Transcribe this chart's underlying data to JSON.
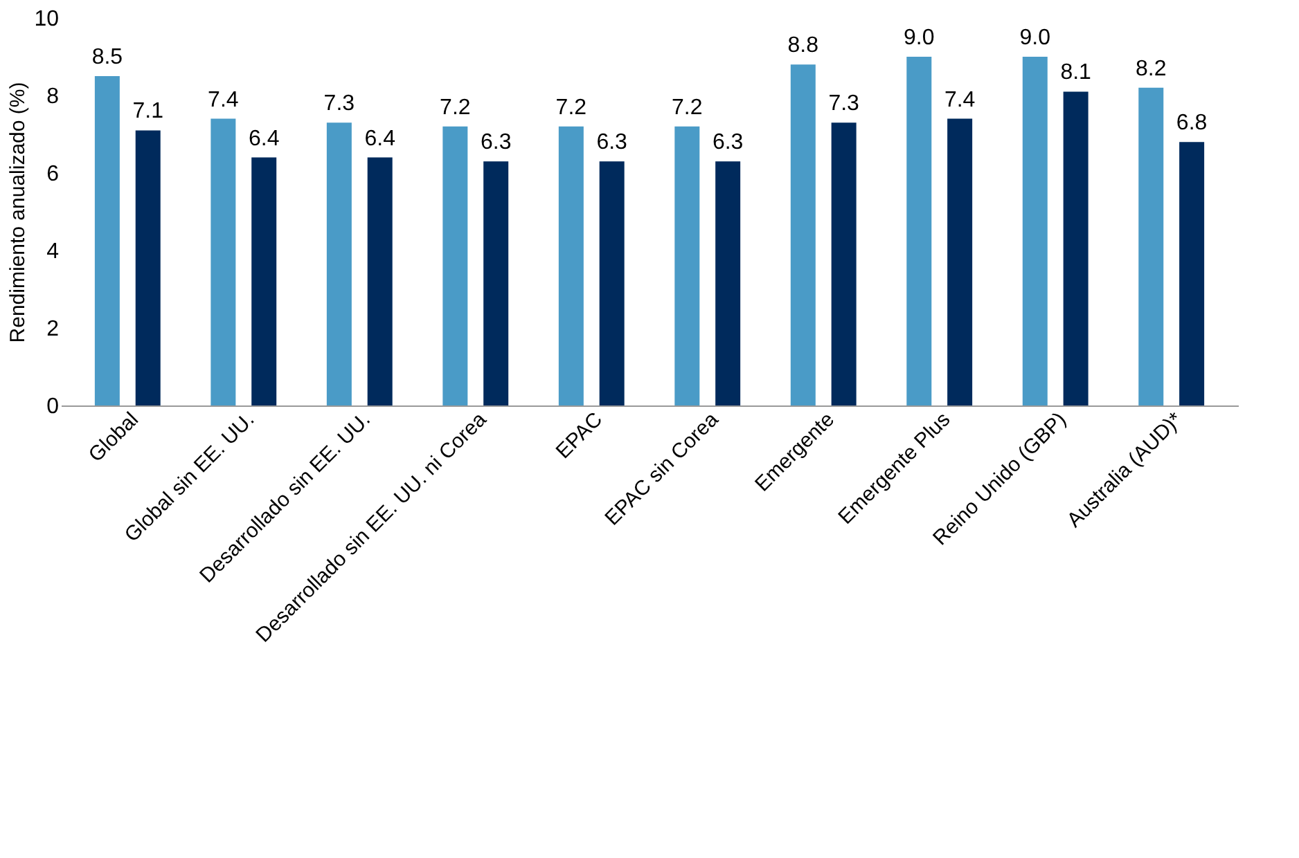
{
  "chart_data": {
    "type": "bar",
    "ylabel": "Rendimiento anualizado (%)",
    "categories": [
      "Global",
      "Global sin EE. UU.",
      "Desarrollado sin EE. UU.",
      "Desarrollado sin EE. UU. ni Corea",
      "EPAC",
      "EPAC sin Corea",
      "Emergente",
      "Emergente Plus",
      "Reino Unido (GBP)",
      "Australia (AUD)*"
    ],
    "series": [
      {
        "color": "#4a9bc7",
        "values": [
          8.5,
          7.4,
          7.3,
          7.2,
          7.2,
          7.2,
          8.8,
          9.0,
          9.0,
          8.2
        ],
        "value_labels": [
          "8.5",
          "7.4",
          "7.3",
          "7.2",
          "7.2",
          "7.2",
          "8.8",
          "9.0",
          "9.0",
          "8.2"
        ]
      },
      {
        "color": "#002a5c",
        "values": [
          7.1,
          6.4,
          6.4,
          6.3,
          6.3,
          6.3,
          7.3,
          7.4,
          8.1,
          6.8
        ],
        "value_labels": [
          "7.1",
          "6.4",
          "6.4",
          "6.3",
          "6.3",
          "6.3",
          "7.3",
          "7.4",
          "8.1",
          "6.8"
        ]
      }
    ],
    "ylim": [
      0,
      10
    ],
    "yticks": [
      0,
      2,
      4,
      6,
      8,
      10
    ],
    "grid": false,
    "legend": false
  }
}
